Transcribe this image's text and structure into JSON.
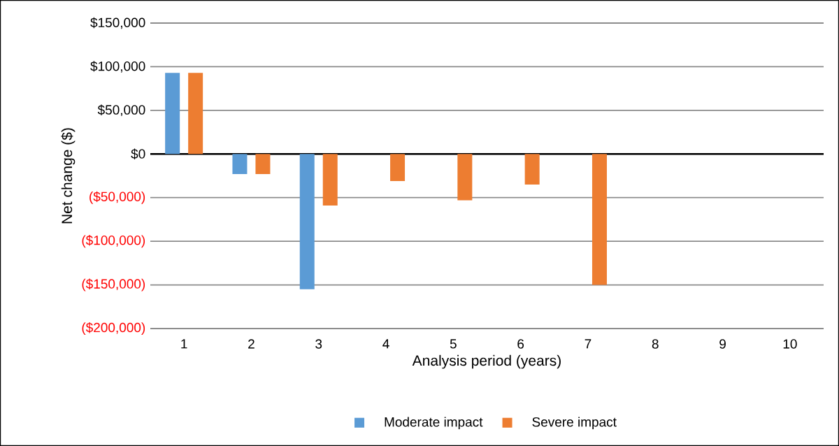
{
  "chart_data": {
    "type": "bar",
    "xlabel": "Analysis period (years)",
    "ylabel": "Net change ($)",
    "categories": [
      "1",
      "2",
      "3",
      "4",
      "5",
      "6",
      "7",
      "8",
      "9",
      "10"
    ],
    "series": [
      {
        "name": "Moderate impact",
        "color": "#5b9bd5",
        "values": [
          93000,
          -23000,
          -155000,
          null,
          null,
          null,
          null,
          null,
          null,
          null
        ]
      },
      {
        "name": "Severe impact",
        "color": "#ed7d31",
        "values": [
          93000,
          -23000,
          -59000,
          -31000,
          -53000,
          -35000,
          -150000,
          null,
          null,
          null
        ]
      }
    ],
    "ylim": [
      -200000,
      150000
    ],
    "yticks": [
      {
        "value": -200000,
        "label": "($200,000)"
      },
      {
        "value": -150000,
        "label": "($150,000)"
      },
      {
        "value": -100000,
        "label": "($100,000)"
      },
      {
        "value": -50000,
        "label": "($50,000)"
      },
      {
        "value": 0,
        "label": "$0"
      },
      {
        "value": 50000,
        "label": "$50,000"
      },
      {
        "value": 100000,
        "label": "$100,000"
      },
      {
        "value": 150000,
        "label": "$150,000"
      }
    ],
    "grid": "y",
    "legend": "bottom"
  }
}
